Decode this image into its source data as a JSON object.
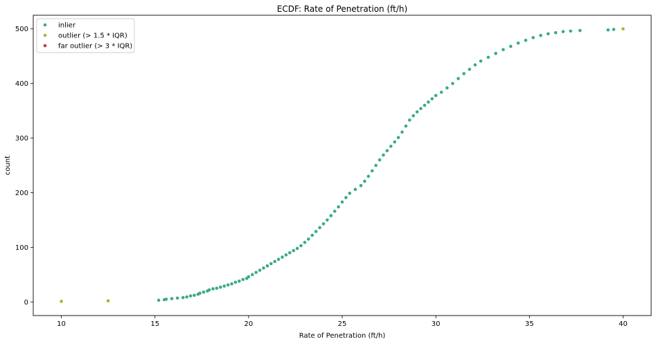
{
  "chart_data": {
    "type": "scatter",
    "title": "ECDF: Rate of Penetration (ft/h)",
    "xlabel": "Rate of Penetration (ft/h)",
    "ylabel": "count",
    "xlim": [
      8.5,
      41.5
    ],
    "ylim": [
      -25,
      525
    ],
    "x_ticks": [
      10,
      15,
      20,
      25,
      30,
      35,
      40
    ],
    "y_ticks": [
      0,
      100,
      200,
      300,
      400,
      500
    ],
    "grid": false,
    "legend_position": "top-left",
    "colors": {
      "inlier": "#3aaa8c",
      "outlier": "#a6b82a",
      "far_outlier": "#d1304f"
    },
    "series": [
      {
        "name": "inlier",
        "points": [
          [
            15.2,
            3
          ],
          [
            15.5,
            4
          ],
          [
            15.6,
            5
          ],
          [
            15.9,
            6
          ],
          [
            16.2,
            7
          ],
          [
            16.5,
            8
          ],
          [
            16.7,
            9
          ],
          [
            16.9,
            11
          ],
          [
            17.1,
            12
          ],
          [
            17.3,
            14
          ],
          [
            17.4,
            16
          ],
          [
            17.6,
            18
          ],
          [
            17.8,
            20
          ],
          [
            17.9,
            22
          ],
          [
            18.1,
            24
          ],
          [
            18.3,
            25
          ],
          [
            18.5,
            27
          ],
          [
            18.7,
            29
          ],
          [
            18.9,
            31
          ],
          [
            19.1,
            33
          ],
          [
            19.3,
            36
          ],
          [
            19.5,
            38
          ],
          [
            19.7,
            41
          ],
          [
            19.9,
            43
          ],
          [
            20.0,
            46
          ],
          [
            20.2,
            50
          ],
          [
            20.4,
            54
          ],
          [
            20.6,
            58
          ],
          [
            20.8,
            62
          ],
          [
            21.0,
            66
          ],
          [
            21.2,
            70
          ],
          [
            21.4,
            74
          ],
          [
            21.6,
            78
          ],
          [
            21.8,
            82
          ],
          [
            22.0,
            86
          ],
          [
            22.2,
            90
          ],
          [
            22.4,
            94
          ],
          [
            22.6,
            98
          ],
          [
            22.8,
            103
          ],
          [
            23.0,
            109
          ],
          [
            23.2,
            115
          ],
          [
            23.4,
            122
          ],
          [
            23.6,
            129
          ],
          [
            23.8,
            136
          ],
          [
            24.0,
            143
          ],
          [
            24.2,
            150
          ],
          [
            24.4,
            158
          ],
          [
            24.6,
            166
          ],
          [
            24.8,
            174
          ],
          [
            25.0,
            183
          ],
          [
            25.2,
            191
          ],
          [
            25.4,
            199
          ],
          [
            25.7,
            206
          ],
          [
            26.0,
            213
          ],
          [
            26.2,
            221
          ],
          [
            26.4,
            230
          ],
          [
            26.6,
            240
          ],
          [
            26.8,
            250
          ],
          [
            27.0,
            260
          ],
          [
            27.2,
            269
          ],
          [
            27.4,
            277
          ],
          [
            27.6,
            285
          ],
          [
            27.8,
            293
          ],
          [
            28.0,
            301
          ],
          [
            28.2,
            311
          ],
          [
            28.4,
            322
          ],
          [
            28.6,
            333
          ],
          [
            28.8,
            341
          ],
          [
            29.0,
            348
          ],
          [
            29.2,
            354
          ],
          [
            29.4,
            360
          ],
          [
            29.6,
            366
          ],
          [
            29.8,
            372
          ],
          [
            30.0,
            378
          ],
          [
            30.3,
            384
          ],
          [
            30.6,
            392
          ],
          [
            30.9,
            400
          ],
          [
            31.2,
            409
          ],
          [
            31.5,
            418
          ],
          [
            31.8,
            426
          ],
          [
            32.1,
            434
          ],
          [
            32.4,
            441
          ],
          [
            32.8,
            448
          ],
          [
            33.2,
            455
          ],
          [
            33.6,
            462
          ],
          [
            34.0,
            468
          ],
          [
            34.4,
            474
          ],
          [
            34.8,
            479
          ],
          [
            35.2,
            484
          ],
          [
            35.6,
            488
          ],
          [
            36.0,
            491
          ],
          [
            36.4,
            493
          ],
          [
            36.8,
            495
          ],
          [
            37.2,
            496
          ],
          [
            37.7,
            497
          ],
          [
            39.2,
            498
          ],
          [
            39.5,
            499
          ]
        ]
      },
      {
        "name": "outlier (> 1.5 * IQR)",
        "points": [
          [
            10.0,
            1
          ],
          [
            12.5,
            2
          ],
          [
            40.0,
            500
          ]
        ]
      },
      {
        "name": "far outlier (> 3 * IQR)",
        "points": []
      }
    ]
  }
}
